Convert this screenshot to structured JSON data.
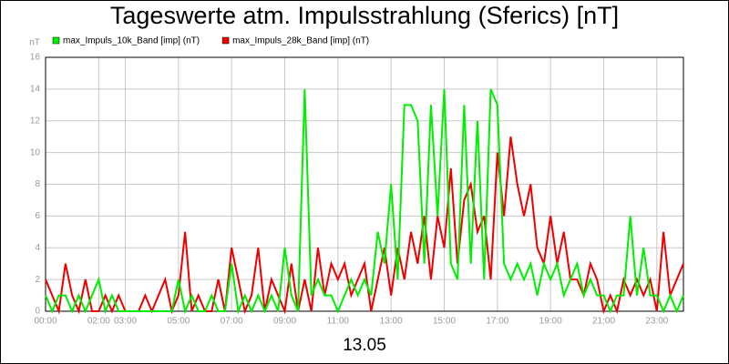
{
  "chart_data": {
    "type": "line",
    "title": "Tageswerte atm. Impulsstrahlung (Sferics) [nT]",
    "ylabel": "nT",
    "xlabel": "13.05",
    "x": [
      0,
      0.25,
      0.5,
      0.75,
      1,
      1.25,
      1.5,
      1.75,
      2,
      2.25,
      2.5,
      2.75,
      3,
      3.25,
      3.5,
      3.75,
      4,
      4.25,
      4.5,
      4.75,
      5,
      5.25,
      5.5,
      5.75,
      6,
      6.25,
      6.5,
      6.75,
      7,
      7.25,
      7.5,
      7.75,
      8,
      8.25,
      8.5,
      8.75,
      9,
      9.25,
      9.5,
      9.75,
      10,
      10.25,
      10.5,
      10.75,
      11,
      11.25,
      11.5,
      11.75,
      12,
      12.25,
      12.5,
      12.75,
      13,
      13.25,
      13.5,
      13.75,
      14,
      14.25,
      14.5,
      14.75,
      15,
      15.25,
      15.5,
      15.75,
      16,
      16.25,
      16.5,
      16.75,
      17,
      17.25,
      17.5,
      17.75,
      18,
      18.25,
      18.5,
      18.75,
      19,
      19.25,
      19.5,
      19.75,
      20,
      20.25,
      20.5,
      20.75,
      21,
      21.25,
      21.5,
      21.75,
      22,
      22.25,
      22.5,
      22.75,
      23,
      23.25,
      23.5,
      23.75,
      24
    ],
    "series": [
      {
        "name": "max_Impuls_10k_Band [imp] (nT)",
        "color": "#00ee00",
        "values": [
          1,
          0,
          1,
          1,
          0,
          1,
          0,
          1,
          2,
          0,
          1,
          0,
          0,
          0,
          0,
          0,
          0,
          0,
          0,
          0,
          2,
          0,
          1,
          0,
          0,
          1,
          0,
          0,
          3,
          0,
          1,
          0,
          1,
          0,
          1,
          0,
          4,
          1,
          0,
          14,
          1,
          2,
          1,
          1,
          0,
          1,
          2,
          1,
          2,
          1,
          5,
          3,
          8,
          2,
          13,
          13,
          12,
          3,
          13,
          6,
          14,
          3,
          2,
          13,
          3,
          12,
          2,
          14,
          13,
          3,
          2,
          3,
          2,
          3,
          1,
          3,
          2,
          3,
          1,
          2,
          3,
          1,
          2,
          1,
          1,
          0,
          1,
          1,
          6,
          1,
          4,
          1,
          1,
          0,
          1,
          0,
          1
        ]
      },
      {
        "name": "max_Impuls_28k_Band [imp] (nT)",
        "color": "#ee0000",
        "values": [
          2,
          1,
          0,
          3,
          1,
          0,
          2,
          0,
          0,
          1,
          0,
          1,
          0,
          0,
          0,
          1,
          0,
          1,
          2,
          0,
          1,
          5,
          0,
          1,
          0,
          0,
          2,
          0,
          4,
          2,
          0,
          1,
          4,
          0,
          2,
          1,
          0,
          3,
          0,
          2,
          0,
          4,
          1,
          3,
          2,
          3,
          1,
          2,
          3,
          0,
          2,
          4,
          1,
          4,
          2,
          5,
          3,
          6,
          2,
          6,
          4,
          9,
          3,
          7,
          8,
          5,
          6,
          2,
          10,
          6,
          11,
          8,
          6,
          8,
          4,
          3,
          6,
          3,
          5,
          2,
          2,
          1,
          3,
          2,
          0,
          1,
          0,
          2,
          1,
          2,
          1,
          2,
          0,
          5,
          1,
          2,
          3
        ]
      }
    ],
    "xlim": [
      0,
      24
    ],
    "xticks": [
      {
        "value": 0,
        "label": "00:00"
      },
      {
        "value": 2,
        "label": "02:00"
      },
      {
        "value": 3,
        "label": "03:00"
      },
      {
        "value": 5,
        "label": "05:00"
      },
      {
        "value": 7,
        "label": "07:00"
      },
      {
        "value": 9,
        "label": "09:00"
      },
      {
        "value": 11,
        "label": "11:00"
      },
      {
        "value": 13,
        "label": "13:00"
      },
      {
        "value": 15,
        "label": "15:00"
      },
      {
        "value": 17,
        "label": "17:00"
      },
      {
        "value": 19,
        "label": "19:00"
      },
      {
        "value": 21,
        "label": "21:00"
      },
      {
        "value": 23,
        "label": "23:00"
      }
    ],
    "ylim": [
      0,
      16
    ],
    "yticks": [
      0,
      2,
      4,
      6,
      8,
      10,
      12,
      14,
      16
    ],
    "grid": true
  }
}
